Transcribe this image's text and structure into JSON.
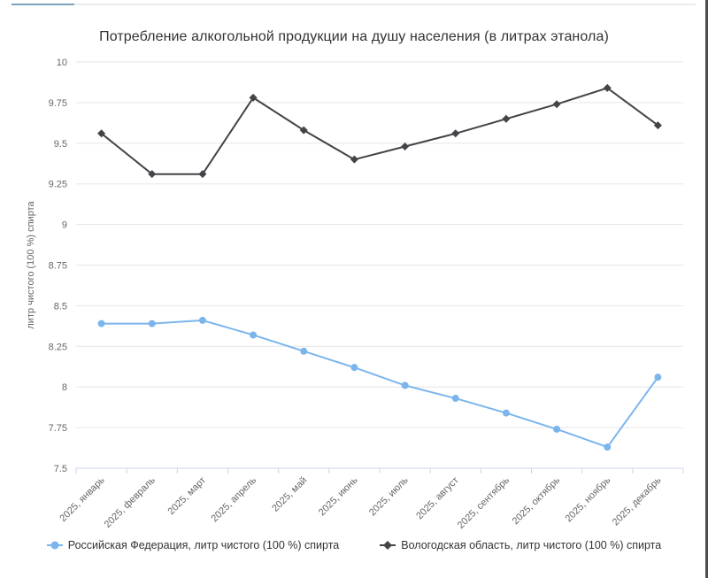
{
  "page": {
    "top_divider": {
      "accent_color": "#7ba4ba",
      "line_color": "#e9edef"
    },
    "right_border_color": "#4e4e4e",
    "background_color": "#ffffff"
  },
  "chart_data": {
    "type": "line",
    "title": "Потребление алкогольной продукции на душу населения (в литрах этанола)",
    "xlabel": "",
    "ylabel": "литр чистого (100 %) спирта",
    "ylim": [
      7.5,
      10
    ],
    "ytick_step": 0.25,
    "yticks": [
      10,
      9.75,
      9.5,
      9.25,
      9,
      8.75,
      8.5,
      8.25,
      8,
      7.75,
      7.5
    ],
    "grid": true,
    "legend_position": "bottom",
    "categories": [
      "2025, январь",
      "2025, февраль",
      "2025, март",
      "2025, апрель",
      "2025, май",
      "2025, июнь",
      "2025, июль",
      "2025, август",
      "2025, сентябрь",
      "2025, октябрь",
      "2025, ноябрь",
      "2025, декабрь"
    ],
    "series": [
      {
        "name": "Российская Федерация, литр чистого (100 %) спирта",
        "color": "#7cb5ec",
        "marker": "circle",
        "values": [
          8.39,
          8.39,
          8.41,
          8.32,
          8.22,
          8.12,
          8.01,
          7.93,
          7.84,
          7.74,
          7.63,
          8.06
        ]
      },
      {
        "name": "Вологодская область, литр чистого (100 %) спирта",
        "color": "#434348",
        "marker": "diamond",
        "values": [
          9.56,
          9.31,
          9.31,
          9.78,
          9.58,
          9.4,
          9.48,
          9.56,
          9.65,
          9.74,
          9.84,
          9.61
        ]
      }
    ],
    "style": {
      "grid_color": "#e6e6e6",
      "axis_color": "#ccd6eb",
      "label_color": "#666666",
      "title_color": "#333333",
      "legend_text_color": "#333333"
    }
  }
}
